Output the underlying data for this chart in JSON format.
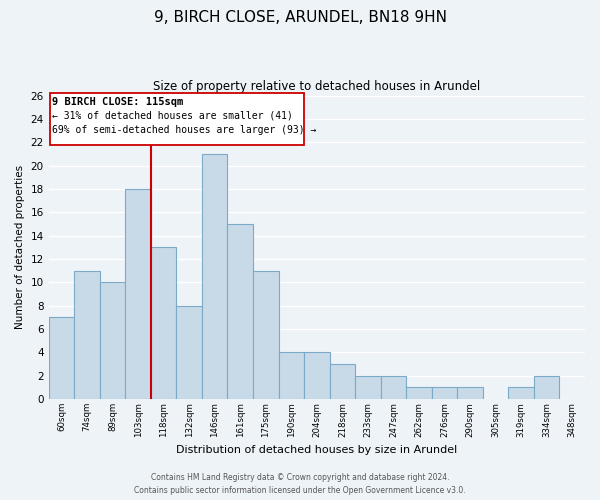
{
  "title1": "9, BIRCH CLOSE, ARUNDEL, BN18 9HN",
  "title2": "Size of property relative to detached houses in Arundel",
  "xlabel": "Distribution of detached houses by size in Arundel",
  "ylabel": "Number of detached properties",
  "tick_labels": [
    "60sqm",
    "74sqm",
    "89sqm",
    "103sqm",
    "118sqm",
    "132sqm",
    "146sqm",
    "161sqm",
    "175sqm",
    "190sqm",
    "204sqm",
    "218sqm",
    "233sqm",
    "247sqm",
    "262sqm",
    "276sqm",
    "290sqm",
    "305sqm",
    "319sqm",
    "334sqm",
    "348sqm"
  ],
  "counts": [
    7,
    11,
    10,
    18,
    13,
    8,
    21,
    15,
    11,
    4,
    4,
    3,
    2,
    2,
    1,
    1,
    1,
    0,
    1,
    2,
    0
  ],
  "bar_color": "#c8dae8",
  "bar_edge_color": "#7aaac8",
  "property_line_color": "#cc0000",
  "property_line_index": 4,
  "ylim": [
    0,
    26
  ],
  "yticks": [
    0,
    2,
    4,
    6,
    8,
    10,
    12,
    14,
    16,
    18,
    20,
    22,
    24,
    26
  ],
  "annotation_title": "9 BIRCH CLOSE: 115sqm",
  "annotation_line1": "← 31% of detached houses are smaller (41)",
  "annotation_line2": "69% of semi-detached houses are larger (93) →",
  "annotation_box_color": "#ffffff",
  "annotation_box_edge": "#cc0000",
  "footer1": "Contains HM Land Registry data © Crown copyright and database right 2024.",
  "footer2": "Contains public sector information licensed under the Open Government Licence v3.0.",
  "background_color": "#eef3f8",
  "grid_color": "#ffffff"
}
